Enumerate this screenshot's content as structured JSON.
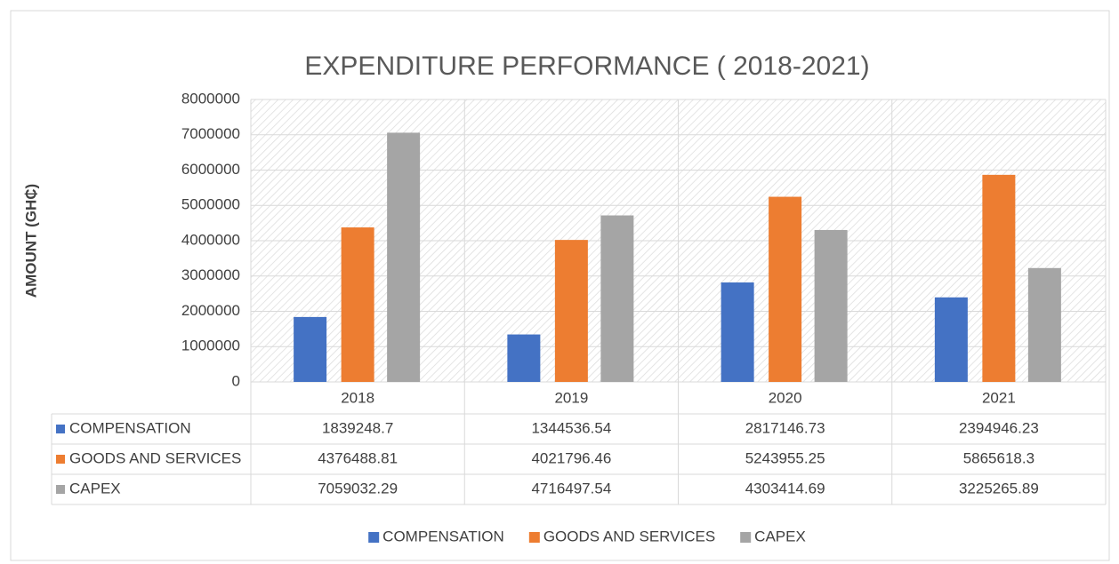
{
  "chart_data": {
    "type": "bar",
    "title": "EXPENDITURE PERFORMANCE ( 2018-2021)",
    "y_label": "AMOUNT (GH₵)",
    "categories": [
      "2018",
      "2019",
      "2020",
      "2021"
    ],
    "series": [
      {
        "name": "COMPENSATION",
        "color": "#4472c4",
        "values": [
          1839248.7,
          1344536.54,
          2817146.73,
          2394946.23
        ]
      },
      {
        "name": "GOODS AND SERVICES",
        "color": "#ed7d31",
        "values": [
          4376488.81,
          4021796.46,
          5243955.25,
          5865618.3
        ]
      },
      {
        "name": "CAPEX",
        "color": "#a5a5a5",
        "values": [
          7059032.29,
          4716497.54,
          4303414.69,
          3225265.89
        ]
      }
    ],
    "ylim": [
      0,
      8000000
    ],
    "yticks": [
      0,
      1000000,
      2000000,
      3000000,
      4000000,
      5000000,
      6000000,
      7000000,
      8000000
    ],
    "grid": true,
    "legend": "bottom",
    "data_table": true
  }
}
